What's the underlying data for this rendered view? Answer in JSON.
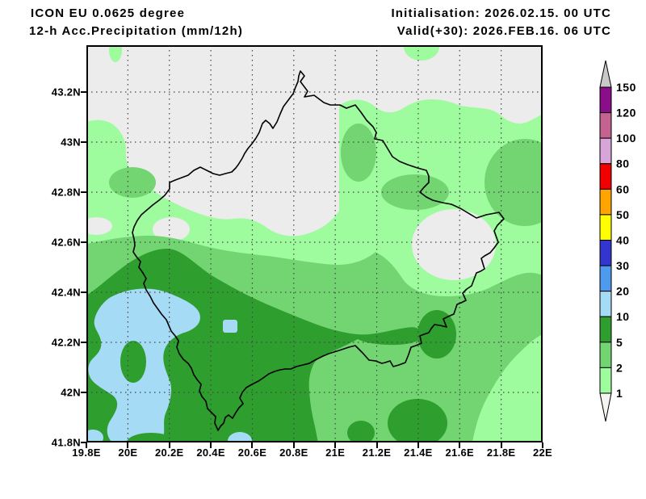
{
  "header": {
    "model_line": "ICON EU 0.0625 degree",
    "product_line": "12-h Acc.Precipitation (mm/12h)",
    "init_line": "Initialisation: 2026.02.15. 00 UTC",
    "valid_line": "Valid(+30): 2026.FEB.16. 06 UTC"
  },
  "map": {
    "lat_ticks": [
      "43.2N",
      "43N",
      "42.8N",
      "42.6N",
      "42.4N",
      "42.2N",
      "42N",
      "41.8N"
    ],
    "lon_ticks": [
      "19.8E",
      "20E",
      "20.2E",
      "20.4E",
      "20.6E",
      "20.8E",
      "21E",
      "21.2E",
      "21.4E",
      "21.6E",
      "21.8E",
      "22E"
    ],
    "lon_range_deg": [
      19.8,
      22.0
    ],
    "lat_range_deg": [
      41.8,
      43.39
    ]
  },
  "field_colors": {
    "bg_lt1": "#ECECEC",
    "green_1_2": "#9EFB9E",
    "green_2_5": "#72D572",
    "green_5_10": "#2E9E2E",
    "blue_10_20": "#A6DBF5",
    "border_line": "#000000"
  },
  "colorbar": {
    "boundary_values": [
      "150",
      "120",
      "100",
      "80",
      "60",
      "50",
      "40",
      "30",
      "20",
      "10",
      "5",
      "2",
      "1"
    ],
    "segment_colors_top_to_bottom": [
      "#8A0D8A",
      "#C4638F",
      "#D8A5D8",
      "#F20000",
      "#FFA400",
      "#FFFF00",
      "#3335CF",
      "#4E9AEC",
      "#A6DBF5",
      "#2E9E2E",
      "#72D572",
      "#9EFB9E"
    ],
    "arrow_top_color": "#C9C9C9",
    "arrow_bottom_color": "#F4F4F1"
  }
}
